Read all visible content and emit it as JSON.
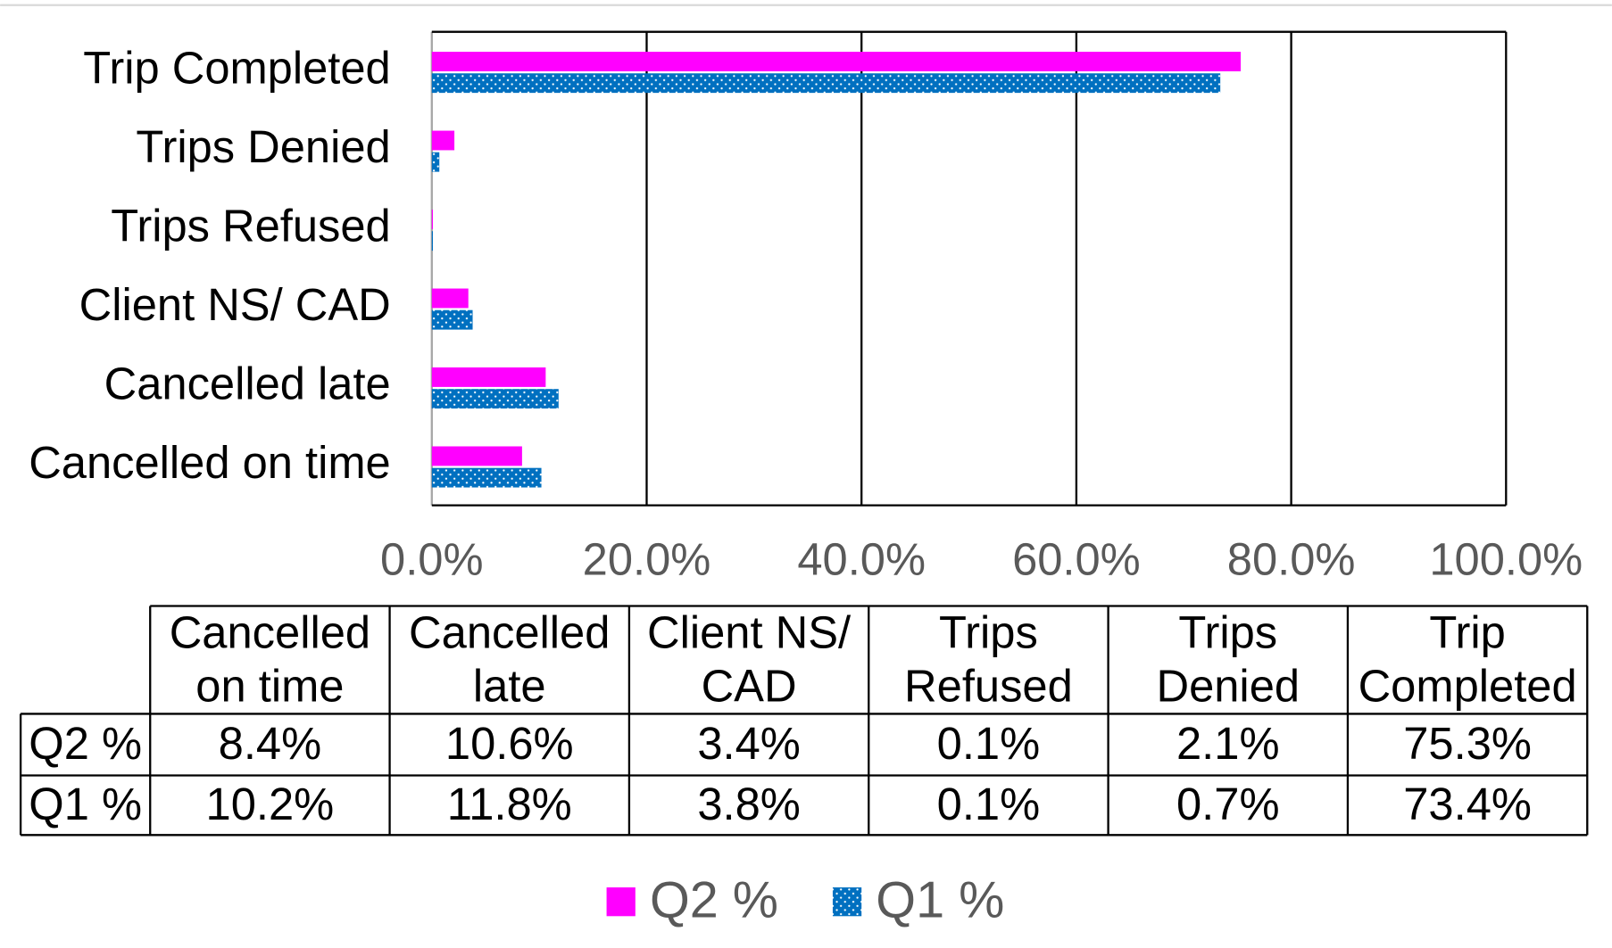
{
  "chart_data": {
    "type": "bar",
    "orientation": "horizontal",
    "categories": [
      "Cancelled on time",
      "Cancelled late",
      "Client NS/ CAD",
      "Trips Refused",
      "Trips Denied",
      "Trip Completed"
    ],
    "series": [
      {
        "name": "Q2 %",
        "color": "#ff00ff",
        "values": [
          8.4,
          10.6,
          3.4,
          0.1,
          2.1,
          75.3
        ],
        "value_labels": [
          "8.4%",
          "10.6%",
          "3.4%",
          "0.1%",
          "2.1%",
          "75.3%"
        ]
      },
      {
        "name": "Q1 %",
        "color": "#0070c0",
        "pattern": "dots",
        "values": [
          10.2,
          11.8,
          3.8,
          0.1,
          0.7,
          73.4
        ],
        "value_labels": [
          "10.2%",
          "11.8%",
          "3.8%",
          "0.1%",
          "0.7%",
          "73.4%"
        ]
      }
    ],
    "xlim": [
      0,
      100
    ],
    "xticks": [
      {
        "value": 0,
        "label": "0.0%"
      },
      {
        "value": 20,
        "label": "20.0%"
      },
      {
        "value": 40,
        "label": "40.0%"
      },
      {
        "value": 60,
        "label": "60.0%"
      },
      {
        "value": 80,
        "label": "80.0%"
      },
      {
        "value": 100,
        "label": "100.0%"
      }
    ],
    "grid": true,
    "data_table": true,
    "legend": "bottom"
  }
}
